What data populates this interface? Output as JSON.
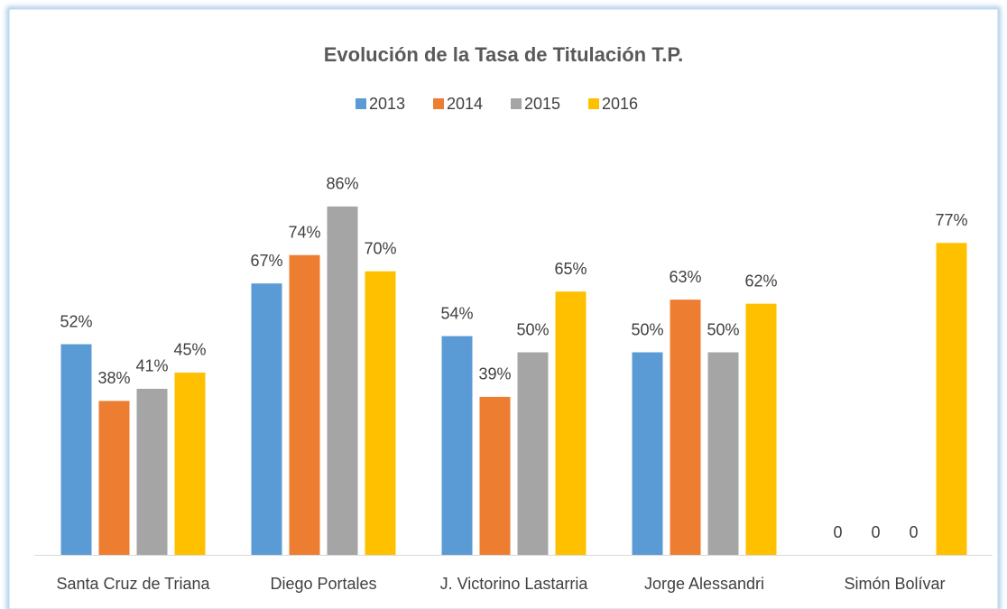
{
  "chart_data": {
    "type": "bar",
    "title": "Evolución de la Tasa de Titulación T.P.",
    "categories": [
      "Santa Cruz de Triana",
      "Diego Portales",
      "J. Victorino Lastarria",
      "Jorge Alessandri",
      "Simón Bolívar"
    ],
    "series": [
      {
        "name": "2013",
        "color": "#5b9bd5",
        "values": [
          52,
          67,
          54,
          50,
          0
        ],
        "value_labels": [
          "52%",
          "67%",
          "54%",
          "50%",
          "0"
        ]
      },
      {
        "name": "2014",
        "color": "#ed7d31",
        "values": [
          38,
          74,
          39,
          63,
          0
        ],
        "value_labels": [
          "38%",
          "74%",
          "39%",
          "63%",
          "0"
        ]
      },
      {
        "name": "2015",
        "color": "#a5a5a5",
        "values": [
          41,
          86,
          50,
          50,
          0
        ],
        "value_labels": [
          "41%",
          "86%",
          "50%",
          "50%",
          "0"
        ]
      },
      {
        "name": "2016",
        "color": "#ffc000",
        "values": [
          45,
          70,
          65,
          62,
          77
        ],
        "value_labels": [
          "45%",
          "70%",
          "65%",
          "62%",
          "77%"
        ]
      }
    ],
    "legend": "top"
  }
}
